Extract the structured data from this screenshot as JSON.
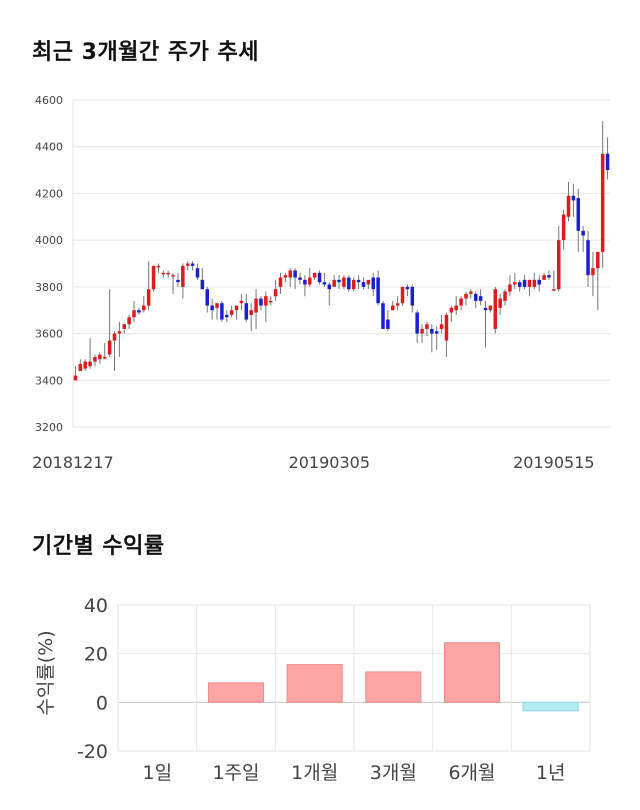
{
  "sections": {
    "price_title": "최근 3개월간 주가 추세",
    "returns_title": "기간별 수익률"
  },
  "colors": {
    "up": "#e01b1b",
    "down": "#1a1fd0",
    "wick": "#777777",
    "positive_bar": "#ffa5a5",
    "negative_bar": "#b2ecf5",
    "grid": "#e6e6e6"
  },
  "chart_data": [
    {
      "type": "candlestick",
      "title": "최근 3개월간 주가 추세",
      "y_ticks": [
        3200,
        3400,
        3600,
        3800,
        4000,
        4200,
        4400,
        4600
      ],
      "ylim": [
        3200,
        4600
      ],
      "x_tick_labels": [
        {
          "label": "20181217",
          "index": 0
        },
        {
          "label": "20190305",
          "index": 52
        },
        {
          "label": "20190515",
          "index": 98
        }
      ],
      "candles": [
        [
          3400,
          3460,
          3420,
          3400
        ],
        [
          3440,
          3490,
          3470,
          3440
        ],
        [
          3450,
          3490,
          3480,
          3440
        ],
        [
          3460,
          3580,
          3480,
          3450
        ],
        [
          3480,
          3510,
          3500,
          3460
        ],
        [
          3490,
          3520,
          3510,
          3470
        ],
        [
          3500,
          3560,
          3500,
          3490
        ],
        [
          3510,
          3790,
          3570,
          3500
        ],
        [
          3570,
          3610,
          3600,
          3440
        ],
        [
          3600,
          3650,
          3610,
          3500
        ],
        [
          3620,
          3640,
          3640,
          3600
        ],
        [
          3640,
          3680,
          3670,
          3620
        ],
        [
          3670,
          3740,
          3700,
          3650
        ],
        [
          3700,
          3710,
          3690,
          3680
        ],
        [
          3700,
          3760,
          3720,
          3690
        ],
        [
          3720,
          3910,
          3790,
          3700
        ],
        [
          3790,
          3850,
          3890,
          3780
        ],
        [
          3890,
          3900,
          3890,
          3860
        ],
        [
          3860,
          3870,
          3860,
          3840
        ],
        [
          3860,
          3870,
          3860,
          3840
        ],
        [
          3850,
          3860,
          3850,
          3770
        ],
        [
          3830,
          3860,
          3820,
          3800
        ],
        [
          3800,
          3900,
          3890,
          3750
        ],
        [
          3890,
          3910,
          3900,
          3870
        ],
        [
          3900,
          3910,
          3890,
          3870
        ],
        [
          3880,
          3900,
          3840,
          3830
        ],
        [
          3830,
          3880,
          3790,
          3790
        ],
        [
          3790,
          3800,
          3720,
          3690
        ],
        [
          3720,
          3750,
          3700,
          3660
        ],
        [
          3710,
          3730,
          3730,
          3660
        ],
        [
          3730,
          3740,
          3660,
          3650
        ],
        [
          3680,
          3700,
          3670,
          3650
        ],
        [
          3680,
          3720,
          3700,
          3670
        ],
        [
          3700,
          3720,
          3720,
          3660
        ],
        [
          3730,
          3770,
          3740,
          3700
        ],
        [
          3730,
          3770,
          3660,
          3650
        ],
        [
          3680,
          3730,
          3700,
          3610
        ],
        [
          3690,
          3790,
          3750,
          3620
        ],
        [
          3750,
          3760,
          3720,
          3700
        ],
        [
          3720,
          3780,
          3760,
          3650
        ],
        [
          3740,
          3760,
          3740,
          3720
        ],
        [
          3760,
          3830,
          3790,
          3740
        ],
        [
          3800,
          3860,
          3840,
          3770
        ],
        [
          3840,
          3860,
          3850,
          3820
        ],
        [
          3840,
          3880,
          3870,
          3800
        ],
        [
          3870,
          3880,
          3840,
          3790
        ],
        [
          3840,
          3860,
          3830,
          3810
        ],
        [
          3830,
          3850,
          3810,
          3760
        ],
        [
          3810,
          3880,
          3840,
          3800
        ],
        [
          3840,
          3860,
          3860,
          3830
        ],
        [
          3860,
          3870,
          3820,
          3810
        ],
        [
          3820,
          3860,
          3810,
          3800
        ],
        [
          3810,
          3820,
          3790,
          3720
        ],
        [
          3800,
          3850,
          3830,
          3800
        ],
        [
          3830,
          3850,
          3820,
          3790
        ],
        [
          3800,
          3850,
          3840,
          3790
        ],
        [
          3840,
          3850,
          3790,
          3780
        ],
        [
          3790,
          3840,
          3830,
          3780
        ],
        [
          3830,
          3850,
          3820,
          3790
        ],
        [
          3820,
          3840,
          3800,
          3790
        ],
        [
          3810,
          3830,
          3830,
          3790
        ],
        [
          3840,
          3860,
          3790,
          3760
        ],
        [
          3840,
          3870,
          3730,
          3720
        ],
        [
          3730,
          3740,
          3620,
          3620
        ],
        [
          3660,
          3700,
          3620,
          3610
        ],
        [
          3700,
          3740,
          3720,
          3700
        ],
        [
          3720,
          3760,
          3730,
          3700
        ],
        [
          3730,
          3790,
          3800,
          3720
        ],
        [
          3800,
          3810,
          3790,
          3760
        ],
        [
          3800,
          3810,
          3720,
          3690
        ],
        [
          3690,
          3700,
          3600,
          3560
        ],
        [
          3600,
          3640,
          3620,
          3560
        ],
        [
          3620,
          3650,
          3640,
          3590
        ],
        [
          3620,
          3640,
          3600,
          3520
        ],
        [
          3610,
          3630,
          3600,
          3530
        ],
        [
          3620,
          3680,
          3640,
          3600
        ],
        [
          3570,
          3690,
          3680,
          3500
        ],
        [
          3690,
          3720,
          3710,
          3650
        ],
        [
          3700,
          3760,
          3720,
          3680
        ],
        [
          3720,
          3760,
          3750,
          3700
        ],
        [
          3750,
          3780,
          3770,
          3720
        ],
        [
          3770,
          3790,
          3780,
          3750
        ],
        [
          3770,
          3780,
          3740,
          3710
        ],
        [
          3760,
          3790,
          3740,
          3720
        ],
        [
          3710,
          3740,
          3700,
          3540
        ],
        [
          3700,
          3720,
          3720,
          3690
        ],
        [
          3620,
          3800,
          3790,
          3600
        ],
        [
          3710,
          3770,
          3750,
          3680
        ],
        [
          3740,
          3790,
          3780,
          3720
        ],
        [
          3780,
          3850,
          3810,
          3760
        ],
        [
          3810,
          3860,
          3820,
          3790
        ],
        [
          3820,
          3830,
          3800,
          3780
        ],
        [
          3830,
          3850,
          3800,
          3790
        ],
        [
          3800,
          3830,
          3830,
          3760
        ],
        [
          3800,
          3860,
          3830,
          3790
        ],
        [
          3830,
          3850,
          3810,
          3780
        ],
        [
          3830,
          3860,
          3850,
          3830
        ],
        [
          3850,
          3870,
          3840,
          3830
        ],
        [
          3790,
          3870,
          3790,
          3780
        ],
        [
          3790,
          4060,
          4000,
          3780
        ],
        [
          4000,
          4130,
          4110,
          3960
        ],
        [
          4100,
          4250,
          4190,
          4080
        ],
        [
          4190,
          4240,
          4170,
          4100
        ],
        [
          4180,
          4220,
          4040,
          3950
        ],
        [
          4040,
          4060,
          4020,
          3950
        ],
        [
          4000,
          4040,
          3850,
          3800
        ],
        [
          3850,
          3950,
          3880,
          3760
        ],
        [
          3880,
          3900,
          3950,
          3700
        ],
        [
          3950,
          4510,
          4370,
          3880
        ],
        [
          4370,
          4440,
          4300,
          4260
        ]
      ],
      "candle_order": "open, high, close, low"
    },
    {
      "type": "bar",
      "title": "기간별 수익률",
      "ylabel": "수익률(%)",
      "categories": [
        "1일",
        "1주일",
        "1개월",
        "3개월",
        "6개월",
        "1년"
      ],
      "values": [
        0,
        8,
        15.5,
        12.5,
        24.5,
        -3.5
      ],
      "ylim": [
        -20,
        40
      ],
      "y_ticks": [
        -20,
        0,
        20,
        40
      ]
    }
  ]
}
